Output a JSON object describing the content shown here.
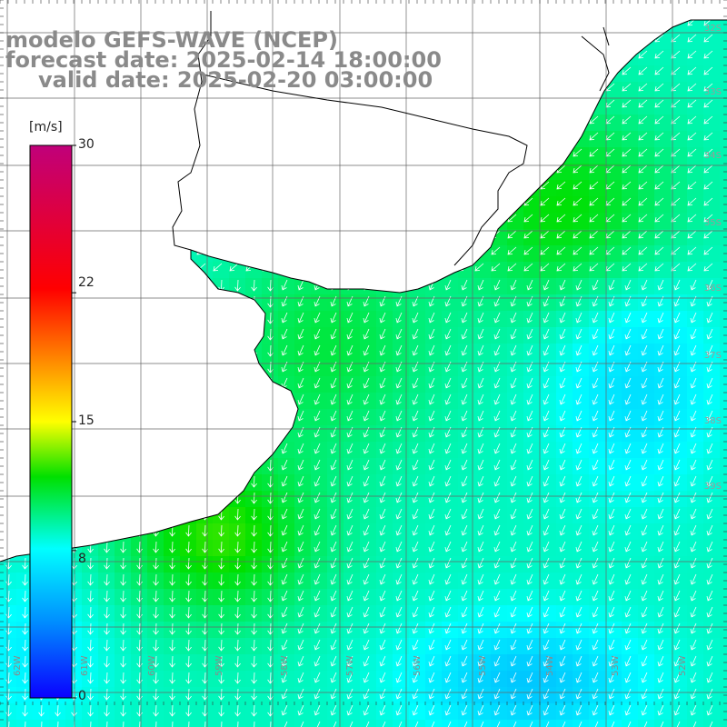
{
  "title": {
    "line1": "modelo GEFS-WAVE (NCEP)",
    "line2": "forecast date: 2025-02-14 18:00:00",
    "line3": "valid date: 2025-02-20 03:00:00"
  },
  "colorbar": {
    "unit": "[m/s]",
    "ticks": [
      {
        "value": 30,
        "label": "30"
      },
      {
        "value": 22,
        "label": "22"
      },
      {
        "value": 15,
        "label": "15"
      },
      {
        "value": 8,
        "label": "8"
      },
      {
        "value": 0,
        "label": "0"
      }
    ],
    "range": [
      0,
      30
    ],
    "stops": [
      "#0a00ff",
      "#0090ff",
      "#00ffff",
      "#00e000",
      "#ffff00",
      "#ff7f00",
      "#ff0000",
      "#c0007a"
    ]
  },
  "map": {
    "variable": "wind speed with direction arrows",
    "land_color": "#ffffff",
    "coastline_color": "#000000",
    "grid_color": "#666666",
    "arrow_color": "#ffffff",
    "lat_labels": [
      "32S",
      "33S",
      "34S",
      "35S",
      "36S",
      "37S",
      "38S",
      "39S"
    ],
    "lon_labels": [
      "62W",
      "61W",
      "60W",
      "59W",
      "58W",
      "57W",
      "56W",
      "55W",
      "54W",
      "53W",
      "52W"
    ]
  }
}
